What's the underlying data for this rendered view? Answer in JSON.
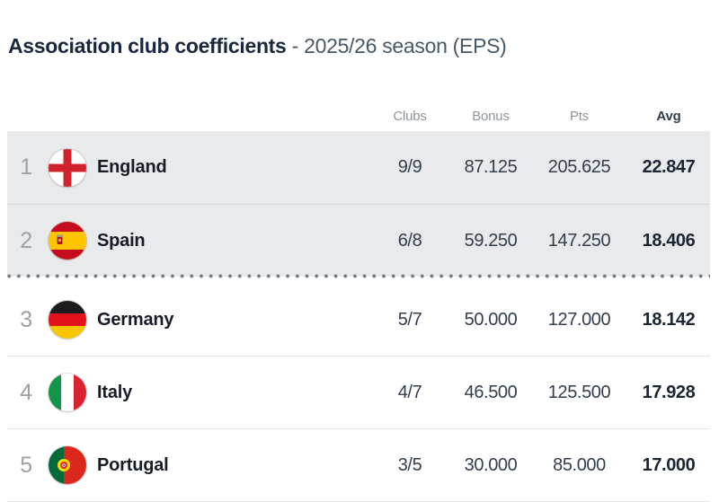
{
  "page": {
    "title_main": "Association club coefficients",
    "title_sub": "- 2025/26 season (EPS)"
  },
  "table": {
    "columns": [
      {
        "key": "clubs",
        "label": "Clubs"
      },
      {
        "key": "bonus",
        "label": "Bonus"
      },
      {
        "key": "pts",
        "label": "Pts"
      },
      {
        "key": "avg",
        "label": "Avg"
      }
    ],
    "rows": [
      {
        "rank": "1",
        "country": "England",
        "flag": "england",
        "clubs": "9/9",
        "bonus": "87.125",
        "pts": "205.625",
        "avg": "22.847",
        "highlighted": true,
        "cutoff_after": false
      },
      {
        "rank": "2",
        "country": "Spain",
        "flag": "spain",
        "clubs": "6/8",
        "bonus": "59.250",
        "pts": "147.250",
        "avg": "18.406",
        "highlighted": true,
        "cutoff_after": true
      },
      {
        "rank": "3",
        "country": "Germany",
        "flag": "germany",
        "clubs": "5/7",
        "bonus": "50.000",
        "pts": "127.000",
        "avg": "18.142",
        "highlighted": false,
        "cutoff_after": false
      },
      {
        "rank": "4",
        "country": "Italy",
        "flag": "italy",
        "clubs": "4/7",
        "bonus": "46.500",
        "pts": "125.500",
        "avg": "17.928",
        "highlighted": false,
        "cutoff_after": false
      },
      {
        "rank": "5",
        "country": "Portugal",
        "flag": "portugal",
        "clubs": "3/5",
        "bonus": "30.000",
        "pts": "85.000",
        "avg": "17.000",
        "highlighted": false,
        "cutoff_after": false
      }
    ]
  },
  "colors": {
    "highlight_row_bg": "#e8eaec",
    "title_dark": "#19283e",
    "title_gray": "#475866",
    "header_gray": "#8e959c",
    "text_dark": "#333e4d",
    "country_dark": "#161d27",
    "rank_gray": "#9aa1a8",
    "row_divider": "#e4e7ea",
    "highlight_divider": "#d6dade",
    "cutoff_dot": "#6f7b85"
  }
}
